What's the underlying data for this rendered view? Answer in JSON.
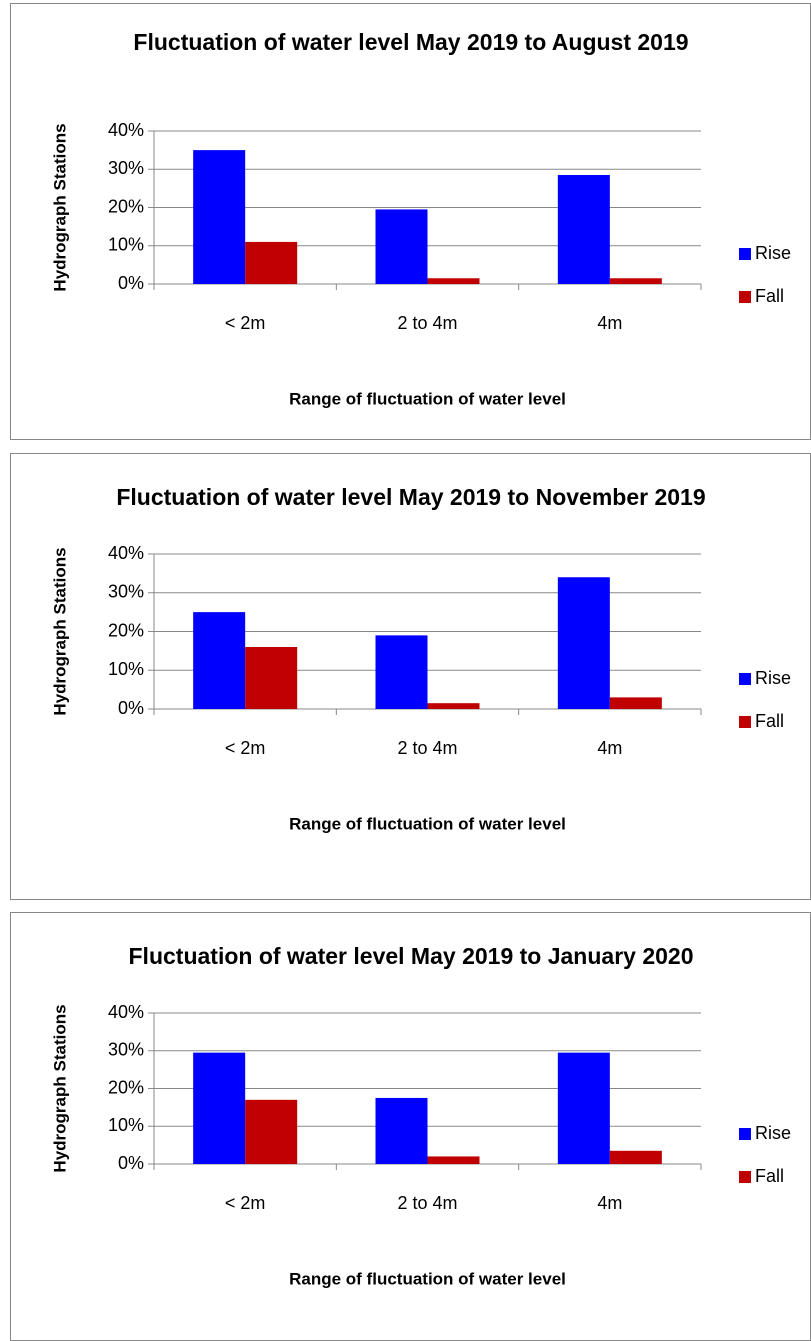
{
  "chart_data": [
    {
      "type": "bar",
      "title": "Fluctuation of water level May 2019 to August 2019",
      "xlabel": "Range of fluctuation of water level",
      "ylabel": "Hydrograph Stations",
      "categories": [
        "< 2m",
        "2 to 4m",
        "4m"
      ],
      "series": [
        {
          "name": "Rise",
          "color": "#0000ff",
          "values": [
            35,
            19.5,
            28.5
          ]
        },
        {
          "name": "Fall",
          "color": "#c00000",
          "values": [
            11,
            1.5,
            1.5
          ]
        }
      ],
      "ylim": [
        0,
        40
      ],
      "yticks": [
        {
          "value": 0,
          "label": "0%"
        },
        {
          "value": 10,
          "label": "10%"
        },
        {
          "value": 20,
          "label": "20%"
        },
        {
          "value": 30,
          "label": "30%"
        },
        {
          "value": 40,
          "label": "40%"
        }
      ],
      "grid": true,
      "legend": "right"
    },
    {
      "type": "bar",
      "title": "Fluctuation of water level May 2019 to November 2019",
      "xlabel": "Range of fluctuation of water level",
      "ylabel": "Hydrograph Stations",
      "categories": [
        "< 2m",
        "2 to 4m",
        "4m"
      ],
      "series": [
        {
          "name": "Rise",
          "color": "#0000ff",
          "values": [
            25,
            19,
            34
          ]
        },
        {
          "name": "Fall",
          "color": "#c00000",
          "values": [
            16,
            1.5,
            3
          ]
        }
      ],
      "ylim": [
        0,
        40
      ],
      "yticks": [
        {
          "value": 0,
          "label": "0%"
        },
        {
          "value": 10,
          "label": "10%"
        },
        {
          "value": 20,
          "label": "20%"
        },
        {
          "value": 30,
          "label": "30%"
        },
        {
          "value": 40,
          "label": "40%"
        }
      ],
      "grid": true,
      "legend": "right"
    },
    {
      "type": "bar",
      "title": "Fluctuation of water level May 2019 to January 2020",
      "xlabel": "Range of fluctuation of water level",
      "ylabel": "Hydrograph Stations",
      "categories": [
        "< 2m",
        "2 to 4m",
        "4m"
      ],
      "series": [
        {
          "name": "Rise",
          "color": "#0000ff",
          "values": [
            29.5,
            17.5,
            29.5
          ]
        },
        {
          "name": "Fall",
          "color": "#c00000",
          "values": [
            17,
            2,
            3.5
          ]
        }
      ],
      "ylim": [
        0,
        40
      ],
      "yticks": [
        {
          "value": 0,
          "label": "0%"
        },
        {
          "value": 10,
          "label": "10%"
        },
        {
          "value": 20,
          "label": "20%"
        },
        {
          "value": 30,
          "label": "30%"
        },
        {
          "value": 40,
          "label": "40%"
        }
      ],
      "grid": true,
      "legend": "right"
    }
  ]
}
